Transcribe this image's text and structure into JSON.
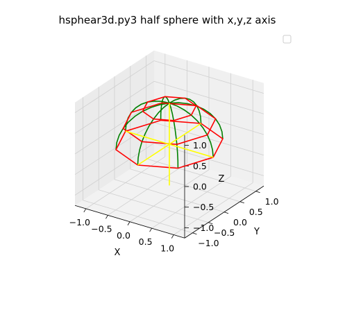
{
  "chart_data": {
    "type": "wireframe-3d",
    "title": "hsphear3d.py3 half sphere with x,y,z axis",
    "xlabel": "X",
    "ylabel": "Y",
    "zlabel": "Z",
    "x_ticks": [
      "−1.0",
      "−0.5",
      "0.0",
      "0.5",
      "1.0"
    ],
    "y_ticks": [
      "−1.0",
      "−0.5",
      "0.0",
      "0.5",
      "1.0"
    ],
    "z_ticks": [
      "−1.0",
      "−0.5",
      "0.0",
      "0.5",
      "1.0"
    ],
    "xlim": [
      -1.25,
      1.25
    ],
    "ylim": [
      -1.25,
      1.25
    ],
    "zlim": [
      -1.25,
      1.25
    ],
    "legend": {
      "placement": "top-right",
      "entries": []
    },
    "surface": {
      "shape": "half sphere",
      "radius": 1.0,
      "latitude_rings_deg": [
        0,
        30,
        60
      ],
      "meridian_count": 8,
      "ring_color": "#ff0000",
      "meridian_color": "#008000"
    },
    "axes_lines": {
      "color": "#ffff00",
      "segments": [
        {
          "name": "x",
          "from": [
            -1.0,
            0,
            0
          ],
          "to": [
            1.0,
            0,
            0
          ]
        },
        {
          "name": "y",
          "from": [
            0,
            -1.0,
            0
          ],
          "to": [
            0,
            1.0,
            0
          ]
        },
        {
          "name": "z",
          "from": [
            0,
            0,
            -1.0
          ],
          "to": [
            0,
            0,
            1.0
          ]
        }
      ]
    },
    "grid": true,
    "view": {
      "elev_deg": 30,
      "azim_deg": -60
    },
    "pane_color": "#f2f2f2",
    "grid_color": "#cfcfcf"
  }
}
